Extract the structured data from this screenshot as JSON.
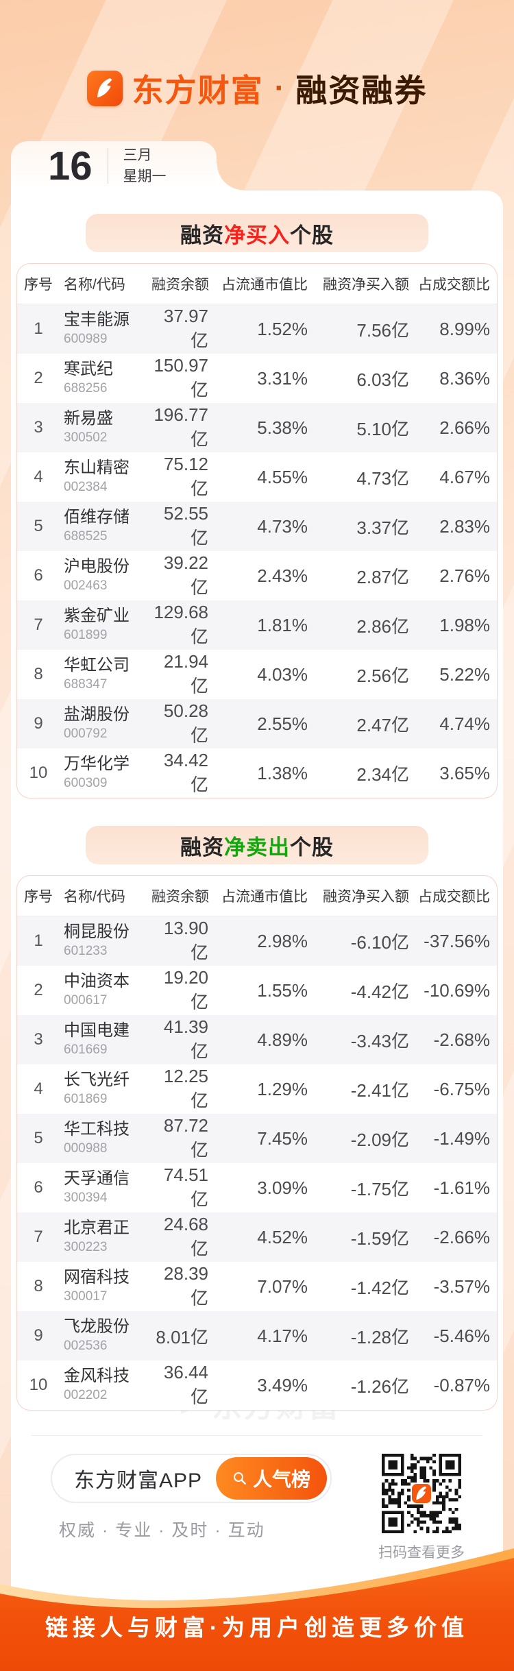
{
  "header": {
    "brand": "东方财富",
    "separator": "·",
    "title": "融资融券"
  },
  "date_card": {
    "day": "16",
    "month": "三月",
    "weekday": "星期一"
  },
  "watermark": "东方财富",
  "colors": {
    "accent": "#f4570d",
    "buy_highlight": "#f5231c",
    "sell_highlight": "#11a80b",
    "footer_orange": "#f2520b"
  },
  "tables": [
    {
      "title_prefix": "融资",
      "title_highlight": "净买入",
      "title_suffix": "个股",
      "highlight_color": "#f5231c",
      "columns": [
        "序号",
        "名称/代码",
        "融资余额",
        "占流通市值比",
        "融资净买入额",
        "占成交额比"
      ],
      "rows": [
        {
          "rank": "1",
          "name": "宝丰能源",
          "code": "600989",
          "balance": "37.97亿",
          "mkt_ratio": "1.52%",
          "net_buy": "7.56亿",
          "turnover_ratio": "8.99%"
        },
        {
          "rank": "2",
          "name": "寒武纪",
          "code": "688256",
          "balance": "150.97亿",
          "mkt_ratio": "3.31%",
          "net_buy": "6.03亿",
          "turnover_ratio": "8.36%"
        },
        {
          "rank": "3",
          "name": "新易盛",
          "code": "300502",
          "balance": "196.77亿",
          "mkt_ratio": "5.38%",
          "net_buy": "5.10亿",
          "turnover_ratio": "2.66%"
        },
        {
          "rank": "4",
          "name": "东山精密",
          "code": "002384",
          "balance": "75.12亿",
          "mkt_ratio": "4.55%",
          "net_buy": "4.73亿",
          "turnover_ratio": "4.67%"
        },
        {
          "rank": "5",
          "name": "佰维存储",
          "code": "688525",
          "balance": "52.55亿",
          "mkt_ratio": "4.73%",
          "net_buy": "3.37亿",
          "turnover_ratio": "2.83%"
        },
        {
          "rank": "6",
          "name": "沪电股份",
          "code": "002463",
          "balance": "39.22亿",
          "mkt_ratio": "2.43%",
          "net_buy": "2.87亿",
          "turnover_ratio": "2.76%"
        },
        {
          "rank": "7",
          "name": "紫金矿业",
          "code": "601899",
          "balance": "129.68亿",
          "mkt_ratio": "1.81%",
          "net_buy": "2.86亿",
          "turnover_ratio": "1.98%"
        },
        {
          "rank": "8",
          "name": "华虹公司",
          "code": "688347",
          "balance": "21.94亿",
          "mkt_ratio": "4.03%",
          "net_buy": "2.56亿",
          "turnover_ratio": "5.22%"
        },
        {
          "rank": "9",
          "name": "盐湖股份",
          "code": "000792",
          "balance": "50.28亿",
          "mkt_ratio": "2.55%",
          "net_buy": "2.47亿",
          "turnover_ratio": "4.74%"
        },
        {
          "rank": "10",
          "name": "万华化学",
          "code": "600309",
          "balance": "34.42亿",
          "mkt_ratio": "1.38%",
          "net_buy": "2.34亿",
          "turnover_ratio": "3.65%"
        }
      ]
    },
    {
      "title_prefix": "融资",
      "title_highlight": "净卖出",
      "title_suffix": "个股",
      "highlight_color": "#11a80b",
      "columns": [
        "序号",
        "名称/代码",
        "融资余额",
        "占流通市值比",
        "融资净买入额",
        "占成交额比"
      ],
      "rows": [
        {
          "rank": "1",
          "name": "桐昆股份",
          "code": "601233",
          "balance": "13.90亿",
          "mkt_ratio": "2.98%",
          "net_buy": "-6.10亿",
          "turnover_ratio": "-37.56%"
        },
        {
          "rank": "2",
          "name": "中油资本",
          "code": "000617",
          "balance": "19.20亿",
          "mkt_ratio": "1.55%",
          "net_buy": "-4.42亿",
          "turnover_ratio": "-10.69%"
        },
        {
          "rank": "3",
          "name": "中国电建",
          "code": "601669",
          "balance": "41.39亿",
          "mkt_ratio": "4.89%",
          "net_buy": "-3.43亿",
          "turnover_ratio": "-2.68%"
        },
        {
          "rank": "4",
          "name": "长飞光纤",
          "code": "601869",
          "balance": "12.25亿",
          "mkt_ratio": "1.29%",
          "net_buy": "-2.41亿",
          "turnover_ratio": "-6.75%"
        },
        {
          "rank": "5",
          "name": "华工科技",
          "code": "000988",
          "balance": "87.72亿",
          "mkt_ratio": "7.45%",
          "net_buy": "-2.09亿",
          "turnover_ratio": "-1.49%"
        },
        {
          "rank": "6",
          "name": "天孚通信",
          "code": "300394",
          "balance": "74.51亿",
          "mkt_ratio": "3.09%",
          "net_buy": "-1.75亿",
          "turnover_ratio": "-1.61%"
        },
        {
          "rank": "7",
          "name": "北京君正",
          "code": "300223",
          "balance": "24.68亿",
          "mkt_ratio": "4.52%",
          "net_buy": "-1.59亿",
          "turnover_ratio": "-2.66%"
        },
        {
          "rank": "8",
          "name": "网宿科技",
          "code": "300017",
          "balance": "28.39亿",
          "mkt_ratio": "7.07%",
          "net_buy": "-1.42亿",
          "turnover_ratio": "-3.57%"
        },
        {
          "rank": "9",
          "name": "飞龙股份",
          "code": "002536",
          "balance": "8.01亿",
          "mkt_ratio": "4.17%",
          "net_buy": "-1.28亿",
          "turnover_ratio": "-5.46%"
        },
        {
          "rank": "10",
          "name": "金风科技",
          "code": "002202",
          "balance": "36.44亿",
          "mkt_ratio": "3.49%",
          "net_buy": "-1.26亿",
          "turnover_ratio": "-0.87%"
        }
      ]
    }
  ],
  "footer": {
    "app_name": "东方财富APP",
    "hot_button": "人气榜",
    "tagline": "权威 · 专业 · 及时 · 互动",
    "qr_caption": "扫码查看更多",
    "slogan": "链接人与财富·为用户创造更多价值"
  }
}
